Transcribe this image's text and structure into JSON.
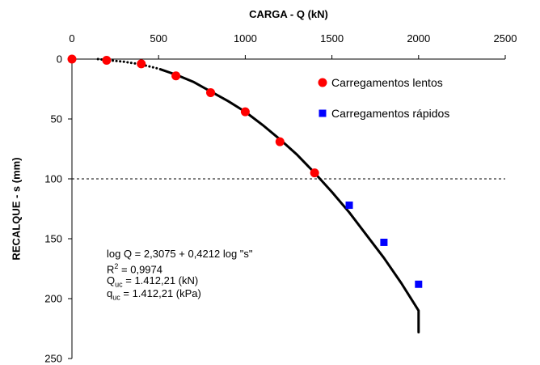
{
  "chart_data": {
    "type": "scatter",
    "title": "",
    "xlabel": "CARGA - Q (kN)",
    "ylabel": "RECALQUE - s (mm)",
    "xlim": [
      0,
      2500
    ],
    "ylim": [
      0,
      250
    ],
    "x_axis_position": "top",
    "y_inverted": true,
    "xticks": [
      "0",
      "500",
      "1000",
      "1500",
      "2000",
      "2500"
    ],
    "yticks": [
      "0",
      "50",
      "100",
      "150",
      "200",
      "250"
    ],
    "grid": false,
    "legend_position": "top-right",
    "series": [
      {
        "name": "Carregamentos lentos",
        "marker": "circle",
        "color": "#ff0000",
        "x": [
          0,
          200,
          400,
          600,
          800,
          1000,
          1200,
          1400
        ],
        "y": [
          0,
          1,
          4,
          14,
          28,
          44,
          69,
          95
        ]
      },
      {
        "name": "Carregamentos rápidos",
        "marker": "square",
        "color": "#0000ff",
        "x": [
          1600,
          1800,
          2000
        ],
        "y": [
          122,
          153,
          188
        ]
      }
    ],
    "fit_curve": {
      "color": "#000000",
      "points": [
        [
          150,
          0
        ],
        [
          200,
          0.8
        ],
        [
          300,
          2.2
        ],
        [
          400,
          4.5
        ],
        [
          500,
          8
        ],
        [
          600,
          13
        ],
        [
          700,
          19
        ],
        [
          800,
          27
        ],
        [
          900,
          35
        ],
        [
          1000,
          44
        ],
        [
          1100,
          55
        ],
        [
          1200,
          67
        ],
        [
          1300,
          80
        ],
        [
          1400,
          95
        ],
        [
          1500,
          111
        ],
        [
          1600,
          128
        ],
        [
          1700,
          147
        ],
        [
          1800,
          166
        ],
        [
          1900,
          187
        ],
        [
          2000,
          210
        ],
        [
          2000,
          228
        ]
      ]
    },
    "reference_line": {
      "y": 100,
      "style": "dashed",
      "color": "#000000"
    },
    "annotations": {
      "line1": "log Q = 2,3075 + 0,4212 log \"s\"",
      "r2_label": "R",
      "r2_sup": "2",
      "r2_value": " = 0,9974",
      "quc_label": "Q",
      "quc_sub": "uc",
      "quc_value": " = 1.412,21 (kN)",
      "quc2_label": "q",
      "quc2_sub": "uc",
      "quc2_value": " = 1.412,21 (kPa)"
    }
  }
}
